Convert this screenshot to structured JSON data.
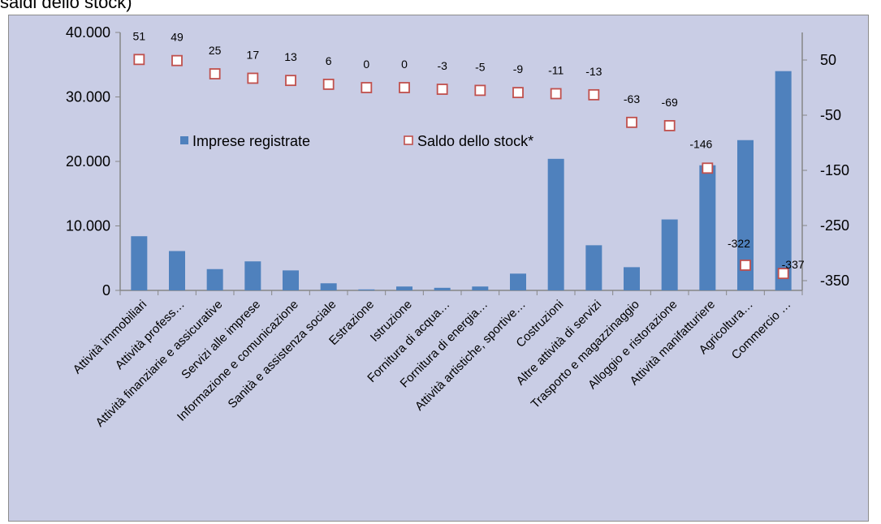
{
  "caption": "saldi dello stock)",
  "colors": {
    "bar": "#4f81bd",
    "marker_edge": "#c0504d",
    "marker_fill": "#ffffff",
    "plot_bg": "#c9cde5",
    "axis": "#868686"
  },
  "chart_data": {
    "type": "bar",
    "categories": [
      "Attività immobiliari",
      "Attività profess…",
      "Attività finanziarie e assicurative",
      "Servizi alle imprese",
      "Informazione e comunicazione",
      "Sanità e assistenza sociale",
      "Estrazione",
      "Istruzione",
      "Fornitura di acqua…",
      "Fornitura di energia…",
      "Attività artistiche, sportive…",
      "Costruzioni",
      "Altre attività di servizi",
      "Trasporto e magazzinaggio",
      "Alloggio e ristorazione",
      "Attività manifatturiere",
      "Agricoltura…",
      "Commercio …"
    ],
    "series": [
      {
        "name": "Imprese registrate",
        "axis": "left",
        "kind": "bar",
        "values": [
          8400,
          6100,
          3300,
          4500,
          3100,
          1100,
          150,
          600,
          400,
          600,
          2600,
          20400,
          7000,
          3600,
          11000,
          19400,
          23300,
          34000
        ]
      },
      {
        "name": "Saldo dello stock*",
        "axis": "right",
        "kind": "marker",
        "values": [
          51,
          49,
          25,
          17,
          13,
          6,
          0,
          0,
          -3,
          -5,
          -9,
          -11,
          -13,
          -63,
          -69,
          -146,
          -322,
          -337
        ]
      }
    ],
    "data_labels": [
      "51",
      "49",
      "25",
      "17",
      "13",
      "6",
      "0",
      "0",
      "-3",
      "-5",
      "-9",
      "-11",
      "-13",
      "-63",
      "-69",
      "-146",
      "-322",
      "-337"
    ],
    "y_left": {
      "ticks": [
        "0",
        "10.000",
        "20.000",
        "30.000",
        "40.000"
      ],
      "ylim": [
        0,
        40000
      ]
    },
    "y_right": {
      "ticks": [
        "50",
        "-50",
        "-150",
        "-250",
        "-350"
      ],
      "ylim": [
        -350,
        90
      ]
    },
    "grid": false,
    "legend": {
      "position": "upper-left inside",
      "items": [
        "Imprese registrate",
        "Saldo dello stock*"
      ]
    }
  }
}
